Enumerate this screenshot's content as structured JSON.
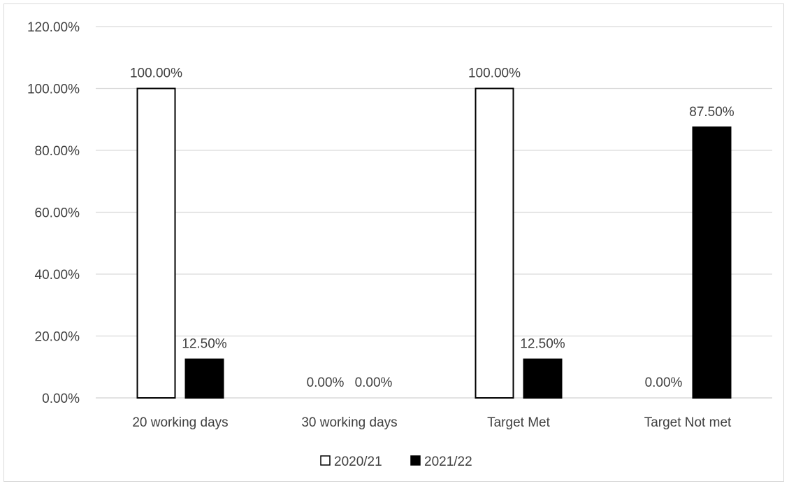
{
  "chart_data": {
    "type": "bar",
    "title": "",
    "xlabel": "",
    "ylabel": "",
    "categories": [
      "20 working days",
      "30 working days",
      "Target Met",
      "Target Not met"
    ],
    "series": [
      {
        "name": "2020/21",
        "values": [
          1.0,
          0.0,
          1.0,
          0.0
        ],
        "labels": [
          "100.00%",
          "0.00%",
          "100.00%",
          "0.00%"
        ],
        "color": "#ffffff",
        "stroke": "#000000"
      },
      {
        "name": "2021/22",
        "values": [
          0.125,
          0.0,
          0.125,
          0.875
        ],
        "labels": [
          "12.50%",
          "0.00%",
          "12.50%",
          "87.50%"
        ],
        "color": "#000000",
        "stroke": "#000000"
      }
    ],
    "ylim": [
      0,
      1.2
    ],
    "yticks": [
      0,
      0.2,
      0.4,
      0.6,
      0.8,
      1.0,
      1.2
    ],
    "ytick_labels": [
      "0.00%",
      "20.00%",
      "40.00%",
      "60.00%",
      "80.00%",
      "100.00%",
      "120.00%"
    ],
    "grid": true,
    "gridline_color": "#d9d9d9",
    "legend_position": "bottom"
  }
}
